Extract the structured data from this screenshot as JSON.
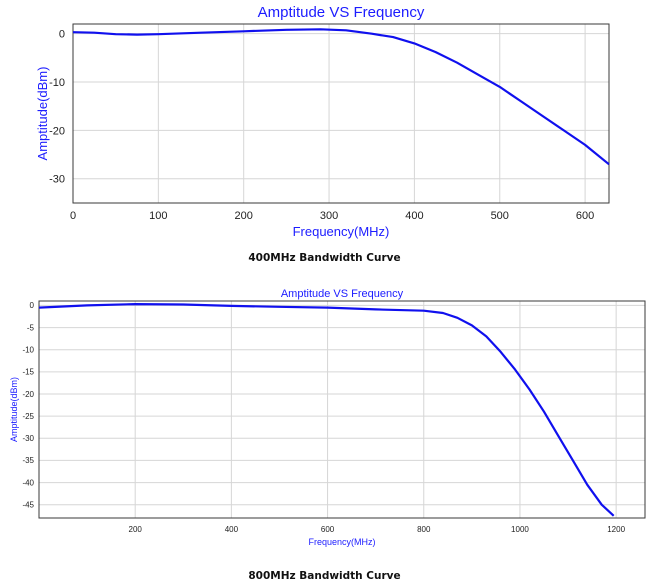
{
  "chart_data": [
    {
      "type": "line",
      "title": "Amptitude VS Frequency",
      "xlabel": "Frequency(MHz)",
      "ylabel": "Amptitude(dBm)",
      "xlim": [
        0,
        628
      ],
      "ylim": [
        -35,
        2
      ],
      "xticks": [
        0,
        100,
        200,
        300,
        400,
        500,
        600
      ],
      "yticks": [
        0,
        -10,
        -20,
        -30
      ],
      "grid": true,
      "series": [
        {
          "color": "#1010ee",
          "x": [
            0,
            25,
            50,
            75,
            100,
            150,
            200,
            250,
            290,
            320,
            350,
            375,
            400,
            425,
            450,
            475,
            500,
            525,
            550,
            575,
            600,
            628
          ],
          "y": [
            0.3,
            0.2,
            -0.1,
            -0.2,
            -0.1,
            0.2,
            0.5,
            0.8,
            0.9,
            0.7,
            0.0,
            -0.7,
            -2.0,
            -3.8,
            -6.0,
            -8.5,
            -11.0,
            -14.0,
            -17.0,
            -20.0,
            -23.0,
            -27.0
          ]
        }
      ],
      "caption": "400MHz Bandwidth Curve"
    },
    {
      "type": "line",
      "title": "Amptitude VS Frequency",
      "xlabel": "Frequency(MHz)",
      "ylabel": "Amptitude(dBm)",
      "xlim": [
        0,
        1260
      ],
      "ylim": [
        -48,
        1
      ],
      "xticks": [
        200,
        400,
        600,
        800,
        1000,
        1200
      ],
      "yticks": [
        0,
        -5,
        -10,
        -15,
        -20,
        -25,
        -30,
        -35,
        -40,
        -45
      ],
      "grid": true,
      "series": [
        {
          "color": "#1010ee",
          "x": [
            0,
            100,
            200,
            300,
            400,
            500,
            600,
            700,
            800,
            840,
            870,
            900,
            930,
            960,
            990,
            1020,
            1050,
            1080,
            1110,
            1140,
            1170,
            1195
          ],
          "y": [
            -0.5,
            0.0,
            0.3,
            0.2,
            -0.1,
            -0.3,
            -0.5,
            -0.9,
            -1.2,
            -1.7,
            -2.8,
            -4.5,
            -7.0,
            -10.5,
            -14.5,
            -19.0,
            -24.0,
            -29.5,
            -35.0,
            -40.5,
            -45.0,
            -47.5
          ]
        }
      ],
      "caption": "800MHz Bandwidth Curve"
    }
  ]
}
